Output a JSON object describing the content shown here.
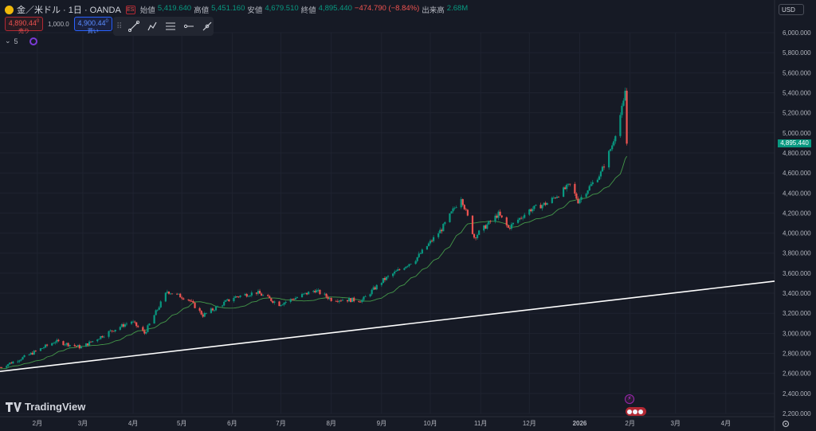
{
  "symbol": {
    "name": "金／米ドル · 1日 · OANDA",
    "mini_label": "ES"
  },
  "ohlc": {
    "open_label": "始値",
    "open": "5,419.640",
    "high_label": "高値",
    "high": "5,451.160",
    "low_label": "安値",
    "low": "4,679.510",
    "close_label": "終値",
    "close": "4,895.440",
    "change": "−474.790 (−8.84%)",
    "volume_label": "出来高",
    "volume": "2.68M"
  },
  "trade": {
    "sell_price": "4,890.44",
    "sell_sup": "0",
    "sell_label": "売り",
    "quantity": "1,000.0",
    "buy_price": "4,900.44",
    "buy_sup": "0",
    "buy_label": "買い"
  },
  "indicator": {
    "count": "5"
  },
  "currency": "USD",
  "last_price": "4,895.440",
  "brand": "TradingView",
  "colors": {
    "up": "#089981",
    "down": "#ef5350",
    "ma": "#4caf50",
    "trendline": "#ffffff",
    "background": "#161a25",
    "grid": "#1f2330"
  },
  "chart_data": {
    "type": "candlestick",
    "x_ticks": [
      "2月",
      "3月",
      "4月",
      "5月",
      "6月",
      "7月",
      "8月",
      "9月",
      "10月",
      "11月",
      "12月",
      "2026",
      "2月",
      "3月",
      "4月"
    ],
    "y_ticks": [
      "6,000.000",
      "5,800.000",
      "5,600.000",
      "5,400.000",
      "5,200.000",
      "5,000.000",
      "4,800.000",
      "4,600.000",
      "4,400.000",
      "4,200.000",
      "4,000.000",
      "3,800.000",
      "3,600.000",
      "3,400.000",
      "3,200.000",
      "3,000.000",
      "2,800.000",
      "2,600.000",
      "2,400.000",
      "2,200.000"
    ],
    "ylim": [
      2200,
      6000
    ],
    "x_range": [
      "2025-01-09",
      "2026-05-01"
    ],
    "price_anchors": [
      [
        "2025-01-09",
        2660
      ],
      [
        "2025-01-25",
        2770
      ],
      [
        "2025-02-12",
        2920
      ],
      [
        "2025-02-28",
        2860
      ],
      [
        "2025-03-18",
        3020
      ],
      [
        "2025-03-31",
        3120
      ],
      [
        "2025-04-08",
        3000
      ],
      [
        "2025-04-22",
        3420
      ],
      [
        "2025-05-05",
        3340
      ],
      [
        "2025-05-14",
        3180
      ],
      [
        "2025-06-02",
        3360
      ],
      [
        "2025-06-16",
        3410
      ],
      [
        "2025-06-30",
        3290
      ],
      [
        "2025-07-22",
        3430
      ],
      [
        "2025-08-01",
        3340
      ],
      [
        "2025-08-20",
        3330
      ],
      [
        "2025-09-02",
        3530
      ],
      [
        "2025-09-22",
        3740
      ],
      [
        "2025-10-08",
        4040
      ],
      [
        "2025-10-20",
        4360
      ],
      [
        "2025-10-28",
        3960
      ],
      [
        "2025-11-12",
        4190
      ],
      [
        "2025-11-18",
        4050
      ],
      [
        "2025-12-01",
        4230
      ],
      [
        "2025-12-12",
        4300
      ],
      [
        "2025-12-26",
        4480
      ],
      [
        "2025-12-31",
        4320
      ],
      [
        "2026-01-14",
        4600
      ],
      [
        "2026-01-21",
        4880
      ],
      [
        "2026-01-28",
        5300
      ],
      [
        "2026-01-29",
        5420
      ],
      [
        "2026-01-30",
        4895
      ]
    ],
    "trendline": [
      [
        "2025-01-09",
        2620
      ],
      [
        "2026-05-01",
        3520
      ]
    ]
  }
}
